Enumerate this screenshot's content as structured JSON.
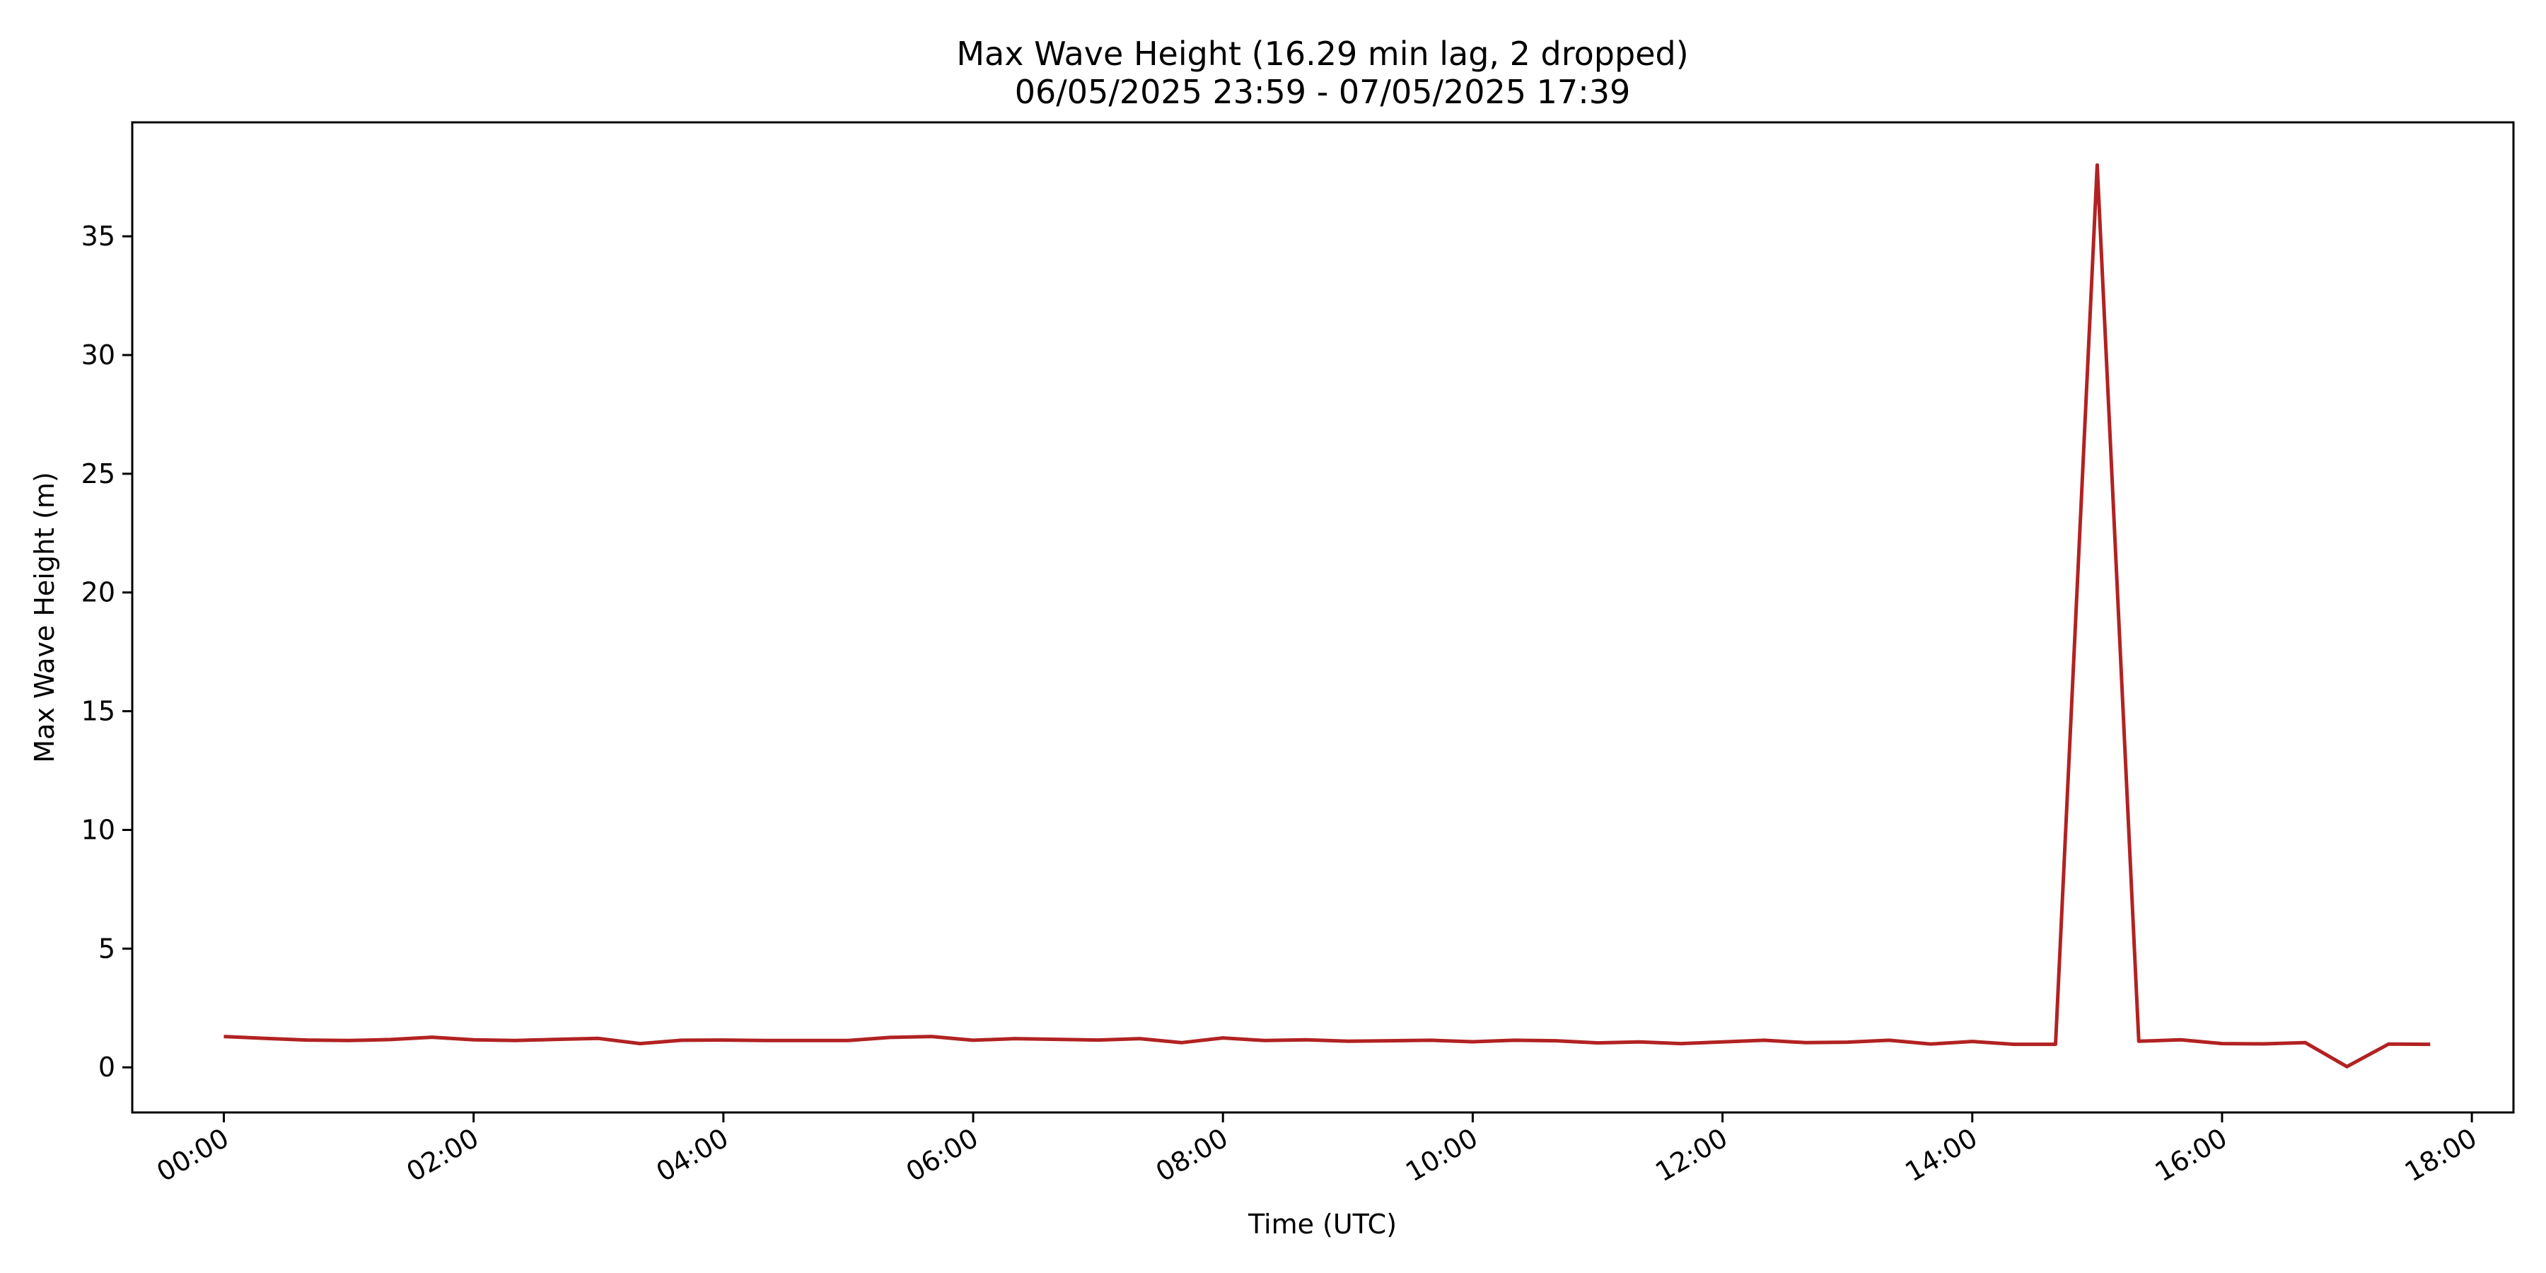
{
  "chart_data": {
    "type": "line",
    "title": "Max Wave Height (16.29 min lag, 2 dropped)",
    "subtitle": "06/05/2025 23:59 - 07/05/2025 17:39",
    "xlabel": "Time (UTC)",
    "ylabel": "Max Wave Height (m)",
    "xlim": [
      "06/05/2025 23:16",
      "07/05/2025 18:20"
    ],
    "ylim": [
      -1.9,
      39.8
    ],
    "grid": false,
    "x_tick_labels": [
      "00:00",
      "02:00",
      "04:00",
      "06:00",
      "08:00",
      "10:00",
      "12:00",
      "14:00",
      "16:00",
      "18:00"
    ],
    "y_tick_labels": [
      "0",
      "5",
      "10",
      "15",
      "20",
      "25",
      "30",
      "35"
    ],
    "line_color": "#b22222",
    "series": [
      {
        "x": [
          "00:00",
          "00:20",
          "00:40",
          "01:00",
          "01:20",
          "01:40",
          "02:00",
          "02:20",
          "02:40",
          "03:00",
          "03:20",
          "03:40",
          "04:00",
          "04:20",
          "04:40",
          "05:00",
          "05:20",
          "05:40",
          "06:00",
          "06:20",
          "06:40",
          "07:00",
          "07:20",
          "07:40",
          "08:00",
          "08:20",
          "08:40",
          "09:00",
          "09:20",
          "09:40",
          "10:00",
          "10:20",
          "10:40",
          "11:00",
          "11:20",
          "11:40",
          "12:00",
          "12:20",
          "12:40",
          "13:00",
          "13:20",
          "13:40",
          "14:00",
          "14:20",
          "14:40",
          "15:00",
          "15:20",
          "15:40",
          "16:00",
          "16:20",
          "16:40",
          "17:00",
          "17:20",
          "17:40"
        ],
        "values": [
          1.3,
          1.22,
          1.15,
          1.13,
          1.17,
          1.27,
          1.16,
          1.13,
          1.18,
          1.22,
          1.0,
          1.14,
          1.15,
          1.13,
          1.13,
          1.13,
          1.26,
          1.3,
          1.14,
          1.21,
          1.18,
          1.15,
          1.21,
          1.04,
          1.24,
          1.13,
          1.16,
          1.1,
          1.12,
          1.14,
          1.08,
          1.14,
          1.12,
          1.03,
          1.07,
          1.0,
          1.07,
          1.14,
          1.04,
          1.06,
          1.14,
          0.98,
          1.09,
          0.97,
          0.97,
          38.0,
          1.1,
          1.16,
          1.0,
          0.99,
          1.04,
          0.03,
          0.98,
          0.97
        ]
      }
    ]
  }
}
